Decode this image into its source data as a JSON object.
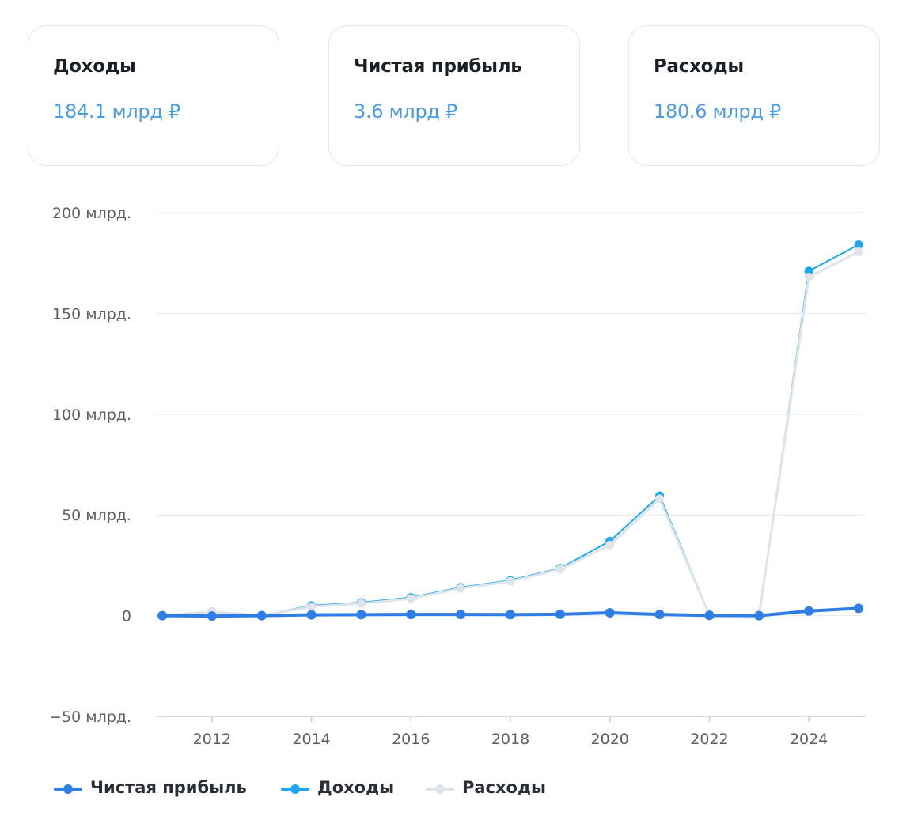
{
  "cards": [
    {
      "title": "Доходы",
      "value": "184.1 млрд ₽"
    },
    {
      "title": "Чистая прибыль",
      "value": "3.6 млрд ₽"
    },
    {
      "title": "Расходы",
      "value": "180.6 млрд ₽"
    }
  ],
  "chart_data": {
    "type": "line",
    "x": [
      2011,
      2012,
      2013,
      2014,
      2015,
      2016,
      2017,
      2018,
      2019,
      2020,
      2021,
      2022,
      2023,
      2024,
      2025
    ],
    "xlim": [
      2011,
      2025
    ],
    "ylim": [
      -50,
      200
    ],
    "xticks": [
      2012,
      2014,
      2016,
      2018,
      2020,
      2022,
      2024
    ],
    "xtick_labels": [
      "2012",
      "2014",
      "2016",
      "2018",
      "2020",
      "2022",
      "2024"
    ],
    "yticks": [
      -50,
      0,
      50,
      100,
      150,
      200
    ],
    "ytick_labels": [
      "−50 млрд.",
      "0",
      "50 млрд.",
      "100 млрд.",
      "150 млрд.",
      "200 млрд."
    ],
    "grid": true,
    "legend_position": "bottom-left",
    "series": [
      {
        "name": "Доходы",
        "color": "#1ea7ee",
        "values": [
          0,
          2,
          0,
          5,
          6.5,
          9,
          14,
          17.5,
          23.5,
          37,
          59.5,
          0.5,
          0.3,
          171,
          184.1
        ]
      },
      {
        "name": "Расходы",
        "color": "#dfe4ea",
        "values": [
          0,
          2,
          0,
          4.5,
          6,
          8.5,
          13.5,
          17,
          23,
          35,
          58,
          0.3,
          0.3,
          168,
          180.6
        ]
      },
      {
        "name": "Чистая прибыль",
        "color": "#2f7ee6",
        "values": [
          0,
          -0.2,
          0,
          0.4,
          0.5,
          0.6,
          0.6,
          0.5,
          0.7,
          1.4,
          0.6,
          0.1,
          0,
          2.3,
          3.6
        ]
      }
    ],
    "legend": [
      {
        "label": "Чистая прибыль",
        "color": "#2f7ee6"
      },
      {
        "label": "Доходы",
        "color": "#1ea7ee"
      },
      {
        "label": "Расходы",
        "color": "#dfe4ea"
      }
    ]
  }
}
